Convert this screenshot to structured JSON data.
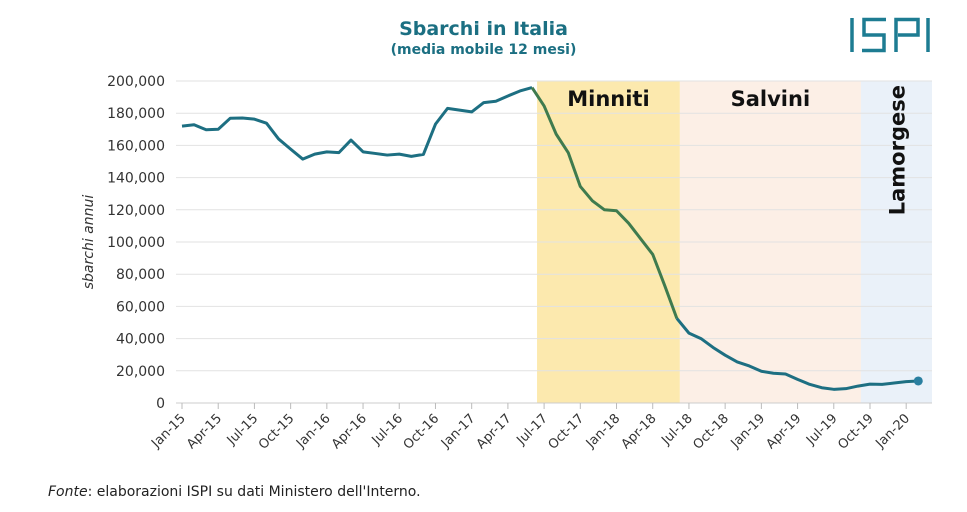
{
  "chart_data": {
    "type": "line",
    "title": "Sbarchi in Italia",
    "subtitle": "(media mobile 12 mesi)",
    "ylabel": "sbarchi annui",
    "xlabel": "",
    "ylim": [
      0,
      200000
    ],
    "yticks": [
      0,
      20000,
      40000,
      60000,
      80000,
      100000,
      120000,
      140000,
      160000,
      180000,
      200000
    ],
    "ytick_labels": [
      "0",
      "20,000",
      "40,000",
      "60,000",
      "80,000",
      "100,000",
      "120,000",
      "140,000",
      "160,000",
      "180,000",
      "200,000"
    ],
    "x_start": "Jan-15",
    "xtick_labels": [
      "Jan-15",
      "Apr-15",
      "Jul-15",
      "Oct-15",
      "Jan-16",
      "Apr-16",
      "Jul-16",
      "Oct-16",
      "Jan-17",
      "Apr-17",
      "Jul-17",
      "Oct-17",
      "Jan-18",
      "Apr-18",
      "Jul-18",
      "Oct-18",
      "Jan-19",
      "Apr-19",
      "Jul-19",
      "Oct-19",
      "Jan-20"
    ],
    "grid": true,
    "values": [
      172000,
      172800,
      169700,
      170000,
      176900,
      177000,
      176300,
      173800,
      164000,
      157700,
      151500,
      154600,
      156000,
      155500,
      163300,
      156000,
      155000,
      154000,
      154600,
      153200,
      154400,
      173200,
      183000,
      181900,
      180800,
      186600,
      187400,
      190700,
      193800,
      195900,
      184500,
      167000,
      155500,
      134500,
      125600,
      120000,
      119400,
      111700,
      102000,
      92300,
      72800,
      52500,
      43400,
      40000,
      34500,
      29700,
      25500,
      23000,
      19700,
      18500,
      18000,
      14700,
      11600,
      9500,
      8500,
      8900,
      10500,
      11700,
      11600,
      12400,
      13300,
      13700
    ],
    "bands": [
      {
        "label": "Minniti",
        "start": "Jun-17",
        "end": "Jun-18",
        "color": "#fce9ae",
        "line_color": "#3f7b4e"
      },
      {
        "label": "Salvini",
        "start": "Jun-18",
        "end": "Sep-19",
        "color": "#fcefe6",
        "line_color": "#1d6f82"
      },
      {
        "label": "Lamorgese",
        "start": "Sep-19",
        "end": "Mar-20",
        "color": "#eaf1f9",
        "line_color": "#1d6f82"
      }
    ],
    "line_color": "#1d6f82"
  },
  "logo": "ISPI",
  "footer": {
    "prefix": "Fonte",
    "text": ": elaborazioni ISPI su dati Ministero dell'Interno."
  }
}
